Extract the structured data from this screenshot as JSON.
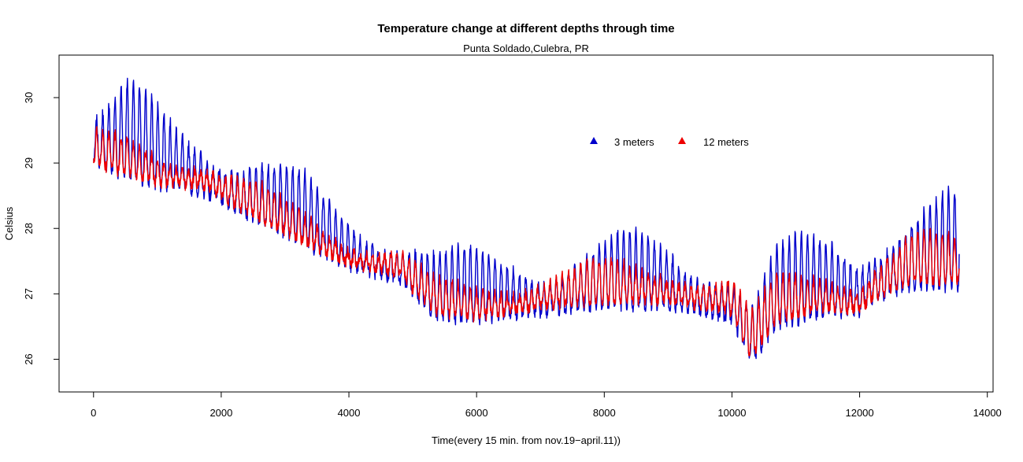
{
  "chart_data": {
    "type": "line",
    "title": "Temperature change at different depths through time",
    "subtitle": "Punta Soldado,Culebra, PR",
    "xlabel": "Time(every 15 min. from nov.19−april.11))",
    "ylabel": "Celsius",
    "xlim": [
      -540,
      14090
    ],
    "ylim": [
      25.5,
      30.65
    ],
    "xticks": [
      0,
      2000,
      4000,
      6000,
      8000,
      10000,
      12000,
      14000
    ],
    "xtick_labels": [
      "0",
      "2000",
      "4000",
      "6000",
      "8000",
      "10000",
      "12000",
      "14000"
    ],
    "yticks": [
      26,
      27,
      28,
      29,
      30
    ],
    "ytick_labels": [
      "26",
      "27",
      "28",
      "29",
      "30"
    ],
    "legend_position": "top-right-inside",
    "series_sampling": {
      "x_start": 0,
      "x_end": 13560,
      "n_points": 2400,
      "cycle_length": 96
    },
    "series": [
      {
        "name": "3 meters",
        "color": "#0000cc",
        "trend_x": [
          0,
          300,
          1000,
          1700,
          2500,
          3300,
          4000,
          4800,
          5100,
          5400,
          6000,
          7000,
          8000,
          9000,
          10000,
          10300,
          10700,
          11500,
          12000,
          12200,
          12800,
          13560
        ],
        "trend_y": [
          29.05,
          28.85,
          28.65,
          28.55,
          28.15,
          27.75,
          27.4,
          27.2,
          26.9,
          26.6,
          26.6,
          26.7,
          26.8,
          26.8,
          26.6,
          25.95,
          26.5,
          26.7,
          26.7,
          26.9,
          27.1,
          27.1
        ],
        "amp_x": [
          0,
          500,
          1500,
          3000,
          4800,
          5200,
          8000,
          10000,
          11300,
          12100,
          12800,
          13560
        ],
        "amp_y": [
          0.7,
          1.3,
          1.1,
          1.0,
          0.8,
          1.0,
          1.0,
          1.0,
          1.2,
          1.35,
          1.3,
          1.3
        ]
      },
      {
        "name": "12 meters",
        "color": "#ee0000",
        "trend_x": [
          0,
          300,
          1000,
          1700,
          2500,
          3300,
          4000,
          4800,
          5100,
          5400,
          6000,
          7000,
          8000,
          9000,
          10000,
          10300,
          10700,
          11500,
          12000,
          12200,
          12800,
          13560
        ],
        "trend_y": [
          29.0,
          28.9,
          28.7,
          28.65,
          28.2,
          27.8,
          27.45,
          27.3,
          26.95,
          26.7,
          26.65,
          26.8,
          26.9,
          26.9,
          26.7,
          26.05,
          26.6,
          26.8,
          26.75,
          26.95,
          27.2,
          27.2
        ],
        "amp_x": [
          0,
          500,
          1500,
          3000,
          4800,
          5200,
          8000,
          10000,
          11300,
          12100,
          12800,
          13560
        ],
        "amp_y": [
          0.45,
          0.5,
          0.5,
          0.45,
          0.4,
          0.45,
          0.55,
          0.6,
          0.65,
          0.55,
          0.65,
          0.65
        ]
      }
    ]
  }
}
